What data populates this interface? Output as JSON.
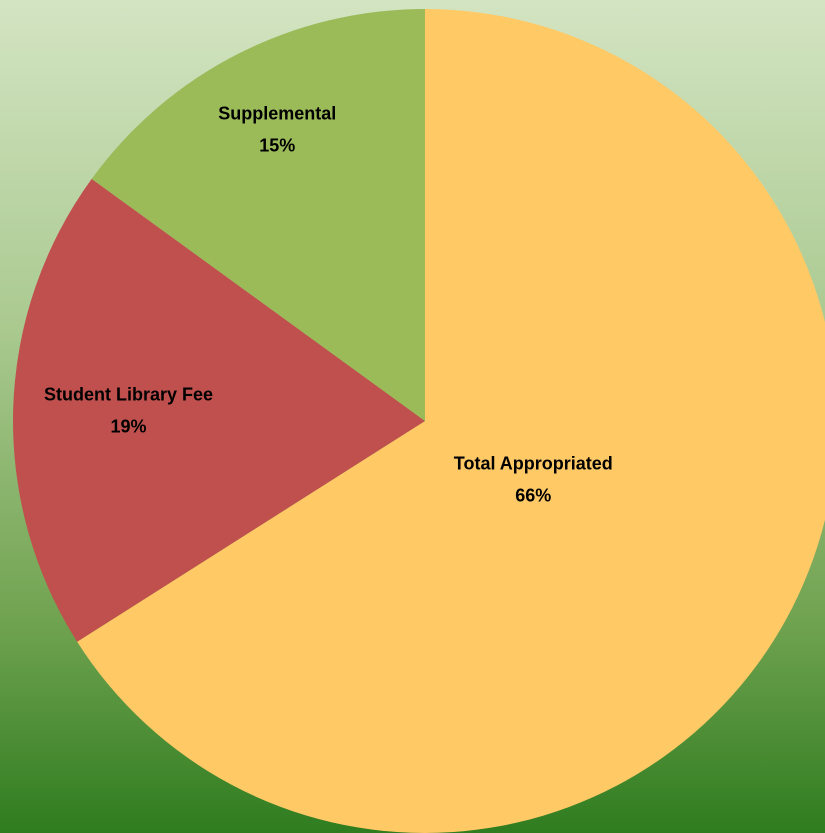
{
  "chart_data": {
    "type": "pie",
    "categories": [
      "Total Appropriated",
      "Student Library Fee",
      "Supplemental"
    ],
    "values": [
      66,
      19,
      15
    ],
    "value_labels": [
      "66%",
      "19%",
      "15%"
    ],
    "colors": [
      "#ffc966",
      "#c0504d",
      "#9bbb59"
    ]
  }
}
